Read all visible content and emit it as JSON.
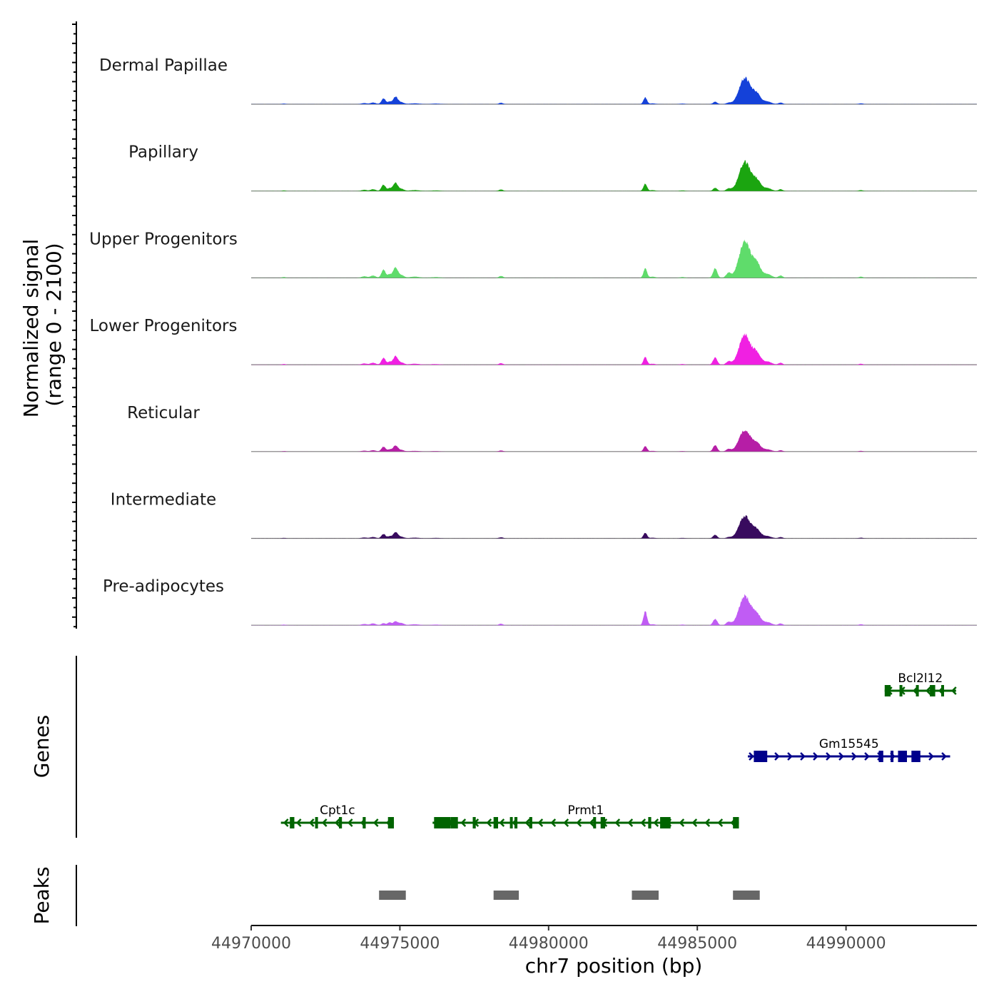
{
  "chart_data": {
    "type": "area",
    "title": "",
    "xlabel": "chr7 position (bp)",
    "ylabel": "Normalized signal",
    "ylabel_range": "(range 0 - 2100)",
    "xlim": [
      44970000,
      44994400
    ],
    "ylim": [
      0,
      2100
    ],
    "x_ticks": [
      {
        "value": 44970000,
        "label": "44970000"
      },
      {
        "value": 44975000,
        "label": "44975000"
      },
      {
        "value": 44980000,
        "label": "44980000"
      },
      {
        "value": 44985000,
        "label": "44985000"
      },
      {
        "value": 44990000,
        "label": "44990000"
      }
    ],
    "peak_shape": [
      {
        "center": 44971100,
        "width": 60,
        "height": 0.02
      },
      {
        "center": 44973800,
        "width": 90,
        "height": 0.04
      },
      {
        "center": 44974100,
        "width": 90,
        "height": 0.06
      },
      {
        "center": 44974450,
        "width": 70,
        "height": 0.22
      },
      {
        "center": 44974650,
        "width": 60,
        "height": 0.09
      },
      {
        "center": 44974850,
        "width": 80,
        "height": 0.28
      },
      {
        "center": 44975050,
        "width": 90,
        "height": 0.07
      },
      {
        "center": 44975500,
        "width": 160,
        "height": 0.03
      },
      {
        "center": 44976200,
        "width": 140,
        "height": 0.02
      },
      {
        "center": 44978400,
        "width": 70,
        "height": 0.05
      },
      {
        "center": 44983250,
        "width": 60,
        "height": 0.25
      },
      {
        "center": 44983500,
        "width": 90,
        "height": 0.03
      },
      {
        "center": 44984500,
        "width": 80,
        "height": 0.02
      },
      {
        "center": 44985600,
        "width": 70,
        "height": 0.12
      },
      {
        "center": 44986050,
        "width": 80,
        "height": 0.08
      },
      {
        "center": 44986600,
        "width": 190,
        "height": 1.0
      },
      {
        "center": 44987000,
        "width": 130,
        "height": 0.35
      },
      {
        "center": 44987350,
        "width": 140,
        "height": 0.1
      },
      {
        "center": 44987800,
        "width": 70,
        "height": 0.06
      },
      {
        "center": 44990500,
        "width": 70,
        "height": 0.03
      }
    ],
    "series": [
      {
        "name": "Dermal Papillae",
        "color": "#1441d9",
        "max": 1100,
        "mods": {
          "44986050": 0.6,
          "44985600": 0.75
        }
      },
      {
        "name": "Papillary",
        "color": "#1ba510",
        "max": 1200,
        "mods": {
          "44985600": 0.9
        }
      },
      {
        "name": "Upper Progenitors",
        "color": "#5fdc6b",
        "max": 1550,
        "mods": {
          "44985600": 2.1,
          "44986050": 1.6
        }
      },
      {
        "name": "Lower Progenitors",
        "color": "#f020e2",
        "max": 1250,
        "mods": {
          "44985600": 2.0,
          "44986050": 1.3
        }
      },
      {
        "name": "Reticular",
        "color": "#b61ea6",
        "max": 900,
        "mods": {
          "44985600": 2.4,
          "44986050": 1.4
        }
      },
      {
        "name": "Intermediate",
        "color": "#380b5e",
        "max": 930,
        "mods": {
          "44985600": 1.3,
          "44986050": 0.6,
          "44974450": 0.9
        }
      },
      {
        "name": "Pre-adipocytes",
        "color": "#c05cf4",
        "max": 1230,
        "mods": {
          "44974450": 0.3,
          "44974850": 0.45,
          "44983250": 1.9,
          "44985600": 1.8,
          "44986050": 1.3
        }
      }
    ],
    "genes_track_label": "Genes",
    "genes": [
      {
        "name": "Bcl2l12",
        "strand": "-",
        "color": "#006400",
        "start": 44991300,
        "end": 44993700,
        "exons": [
          [
            44991300,
            44991500
          ],
          [
            44991800,
            44991850
          ],
          [
            44992350,
            44992400
          ],
          [
            44992820,
            44993000
          ],
          [
            44993200,
            44993280
          ]
        ]
      },
      {
        "name": "Gm15545",
        "strand": "+",
        "color": "#00008b",
        "start": 44986700,
        "end": 44993500,
        "exons": [
          [
            44986900,
            44987350
          ],
          [
            44991100,
            44991250
          ],
          [
            44991500,
            44991570
          ],
          [
            44991750,
            44992050
          ],
          [
            44992200,
            44992500
          ]
        ]
      },
      {
        "name": "Cpt1c",
        "strand": "-",
        "color": "#006400",
        "start": 44971000,
        "end": 44974800,
        "exons": [
          [
            44971300,
            44971450
          ],
          [
            44972150,
            44972200
          ],
          [
            44972950,
            44973050
          ],
          [
            44973750,
            44973850
          ],
          [
            44974600,
            44974800
          ]
        ]
      },
      {
        "name": "Prmt1",
        "strand": "-",
        "color": "#006400",
        "start": 44976100,
        "end": 44986400,
        "exons": [
          [
            44976150,
            44976700
          ],
          [
            44976700,
            44976950
          ],
          [
            44977450,
            44977550
          ],
          [
            44978150,
            44978300
          ],
          [
            44978700,
            44978780
          ],
          [
            44978850,
            44978950
          ],
          [
            44979350,
            44979450
          ],
          [
            44981500,
            44981550
          ],
          [
            44981750,
            44981900
          ],
          [
            44983350,
            44983450
          ],
          [
            44983750,
            44984000
          ],
          [
            44984000,
            44984100
          ],
          [
            44986200,
            44986400
          ]
        ]
      }
    ],
    "peaks_track_label": "Peaks",
    "peaks": [
      {
        "start": 44974300,
        "end": 44975200
      },
      {
        "start": 44978150,
        "end": 44979000
      },
      {
        "start": 44982800,
        "end": 44983700
      },
      {
        "start": 44986200,
        "end": 44987100
      }
    ]
  }
}
